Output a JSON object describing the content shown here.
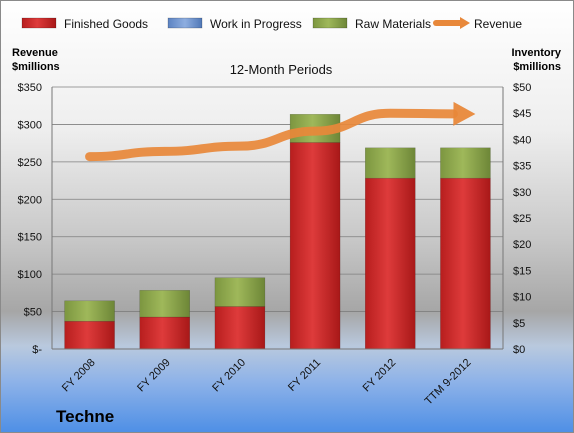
{
  "chart_data": {
    "type": "bar",
    "subtitle": "12-Month Periods",
    "company": "Techne",
    "categories": [
      "FY 2008",
      "FY 2009",
      "FY 2010",
      "FY 2011",
      "FY 2012",
      "TTM 9-2012"
    ],
    "left_axis": {
      "title_line1": "Revenue",
      "title_line2": "$millions",
      "range": [
        0,
        350
      ],
      "ticks": [
        0,
        50,
        100,
        150,
        200,
        250,
        300,
        350
      ],
      "tick_labels": [
        "$-",
        "$50",
        "$100",
        "$150",
        "$200",
        "$250",
        "$300",
        "$350"
      ]
    },
    "right_axis": {
      "title_line1": "Inventory",
      "title_line2": "$millions",
      "range": [
        0,
        50
      ],
      "ticks": [
        0,
        5,
        10,
        15,
        20,
        25,
        30,
        35,
        40,
        45,
        50
      ],
      "tick_labels": [
        "$0",
        "$5",
        "$10",
        "$15",
        "$20",
        "$25",
        "$30",
        "$35",
        "$40",
        "$45",
        "$50"
      ]
    },
    "series": [
      {
        "name": "Finished Goods",
        "kind": "stacked-bar",
        "axis": "right",
        "color": "#cc2a2a",
        "values": [
          5.3,
          6.1,
          8.1,
          39.4,
          32.6,
          32.6
        ]
      },
      {
        "name": "Work in Progress",
        "kind": "stacked-bar",
        "axis": "right",
        "color": "#6f95cf",
        "values": [
          0,
          0,
          0,
          0,
          0,
          0
        ]
      },
      {
        "name": "Raw Materials",
        "kind": "stacked-bar",
        "axis": "right",
        "color": "#8fa84a",
        "values": [
          3.9,
          5.1,
          5.5,
          5.4,
          5.8,
          5.8
        ]
      },
      {
        "name": "Revenue",
        "kind": "line-arrow",
        "axis": "left",
        "color": "#e8883a",
        "values": [
          257,
          264,
          271,
          291,
          315,
          314
        ]
      }
    ],
    "grid": true,
    "legend_position": "top"
  }
}
